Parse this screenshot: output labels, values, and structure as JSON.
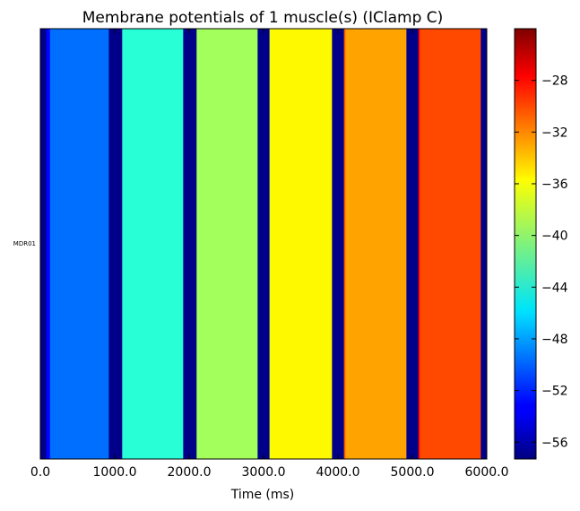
{
  "chart_data": {
    "type": "heatmap",
    "title": "Membrane potentials of 1 muscle(s) (IClamp C)",
    "xlabel": "Time (ms)",
    "ylabel": "",
    "xlim": [
      0,
      6000
    ],
    "x_ticks": [
      0,
      1000,
      2000,
      3000,
      4000,
      5000,
      6000
    ],
    "x_tick_labels": [
      "0.0",
      "1000.0",
      "2000.0",
      "3000.0",
      "4000.0",
      "5000.0",
      "6000.0"
    ],
    "rows": [
      "MDR01"
    ],
    "colormap": "jet",
    "color_range": [
      -57.3,
      -24.0
    ],
    "colorbar_ticks": [
      -28,
      -32,
      -36,
      -40,
      -44,
      -48,
      -52,
      -56
    ],
    "colorbar_tick_labels": [
      "−28",
      "−32",
      "−36",
      "−40",
      "−44",
      "−48",
      "−52",
      "−56"
    ],
    "segments": [
      {
        "start": 0,
        "end": 80,
        "value": -57.0
      },
      {
        "start": 80,
        "end": 130,
        "value": -53.0
      },
      {
        "start": 130,
        "end": 920,
        "value": -49.5
      },
      {
        "start": 920,
        "end": 1100,
        "value": -57.0
      },
      {
        "start": 1100,
        "end": 1920,
        "value": -43.5
      },
      {
        "start": 1920,
        "end": 2100,
        "value": -57.0
      },
      {
        "start": 2100,
        "end": 2920,
        "value": -39.5
      },
      {
        "start": 2920,
        "end": 3080,
        "value": -57.0
      },
      {
        "start": 3080,
        "end": 3100,
        "value": -37.0
      },
      {
        "start": 3100,
        "end": 3920,
        "value": -36.3
      },
      {
        "start": 3920,
        "end": 4080,
        "value": -57.0
      },
      {
        "start": 4080,
        "end": 4100,
        "value": -31.0
      },
      {
        "start": 4100,
        "end": 4920,
        "value": -33.5
      },
      {
        "start": 4920,
        "end": 5080,
        "value": -57.0
      },
      {
        "start": 5080,
        "end": 5100,
        "value": -28.0
      },
      {
        "start": 5100,
        "end": 5920,
        "value": -30.5
      },
      {
        "start": 5920,
        "end": 6000,
        "value": -57.0
      }
    ]
  }
}
